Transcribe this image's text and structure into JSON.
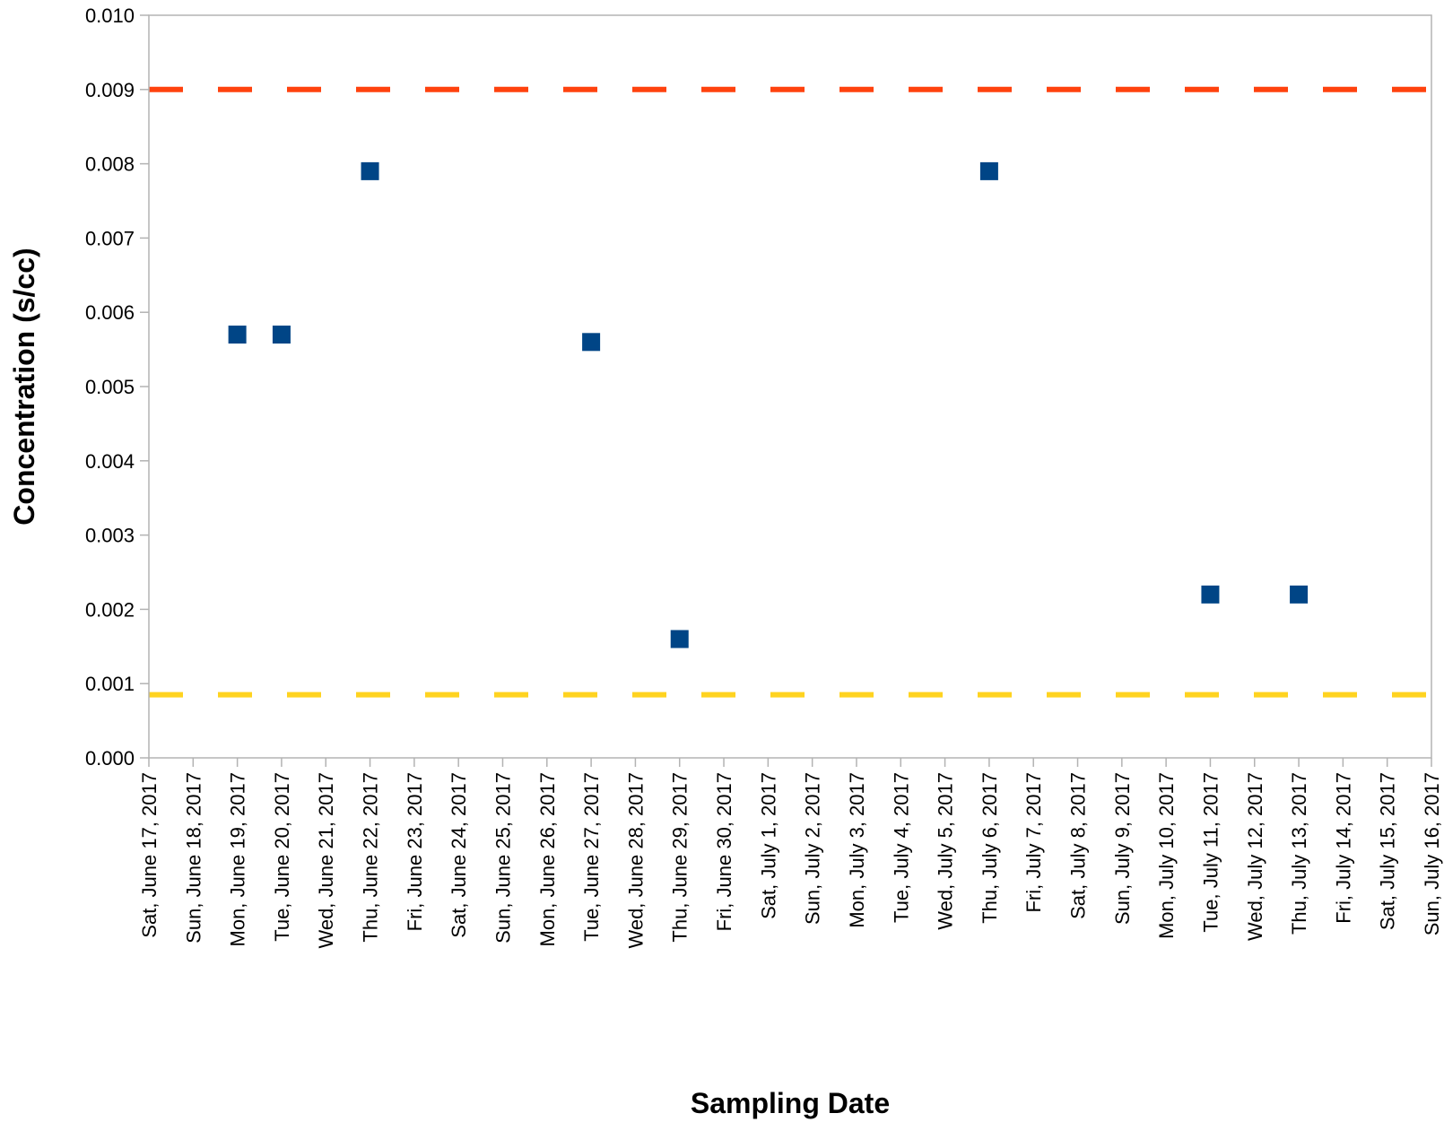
{
  "chart_data": {
    "type": "scatter",
    "title": "",
    "xlabel": "Sampling Date",
    "ylabel": "Concentration (s/cc)",
    "x_categories": [
      "Sat, June 17, 2017",
      "Sun, June 18, 2017",
      "Mon, June 19, 2017",
      "Tue, June 20, 2017",
      "Wed, June 21, 2017",
      "Thu, June 22, 2017",
      "Fri, June 23, 2017",
      "Sat, June 24, 2017",
      "Sun, June 25, 2017",
      "Mon, June 26, 2017",
      "Tue, June 27, 2017",
      "Wed, June 28, 2017",
      "Thu, June 29, 2017",
      "Fri, June 30, 2017",
      "Sat, July 1, 2017",
      "Sun, July 2, 2017",
      "Mon, July 3, 2017",
      "Tue, July 4, 2017",
      "Wed, July 5, 2017",
      "Thu, July 6, 2017",
      "Fri, July 7, 2017",
      "Sat, July 8, 2017",
      "Sun, July 9, 2017",
      "Mon, July 10, 2017",
      "Tue, July 11, 2017",
      "Wed, July 12, 2017",
      "Thu, July 13, 2017",
      "Fri, July 14, 2017",
      "Sat, July 15, 2017",
      "Sun, July 16, 2017"
    ],
    "y_ticks": [
      "0.000",
      "0.001",
      "0.002",
      "0.003",
      "0.004",
      "0.005",
      "0.006",
      "0.007",
      "0.008",
      "0.009",
      "0.010"
    ],
    "ylim": [
      0,
      0.01
    ],
    "grid": false,
    "series": [
      {
        "type": "scatter",
        "marker": "square",
        "color": "#004586",
        "points": [
          {
            "x": "Mon, June 19, 2017",
            "y": 0.0057
          },
          {
            "x": "Tue, June 20, 2017",
            "y": 0.0057
          },
          {
            "x": "Thu, June 22, 2017",
            "y": 0.0079
          },
          {
            "x": "Tue, June 27, 2017",
            "y": 0.0056
          },
          {
            "x": "Thu, June 29, 2017",
            "y": 0.0016
          },
          {
            "x": "Thu, July 6, 2017",
            "y": 0.0079
          },
          {
            "x": "Tue, July 11, 2017",
            "y": 0.0022
          },
          {
            "x": "Thu, July 13, 2017",
            "y": 0.0022
          }
        ]
      },
      {
        "type": "hline",
        "style": "dashed",
        "color": "#ff420e",
        "y": 0.009
      },
      {
        "type": "hline",
        "style": "dashed",
        "color": "#ffd320",
        "y": 0.00085
      }
    ]
  }
}
